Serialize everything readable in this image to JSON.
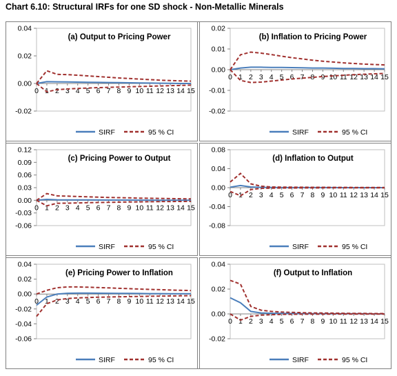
{
  "title": "Chart 6.10: Structural IRFs for one SD shock - Non-Metallic Minerals",
  "colors": {
    "sirf": "#4a7ebb",
    "ci": "#a0302e"
  },
  "chart_data": [
    {
      "type": "line",
      "title": "(a) Output to Pricing Power",
      "x": [
        0,
        1,
        2,
        3,
        4,
        5,
        6,
        7,
        8,
        9,
        10,
        11,
        12,
        13,
        14,
        15
      ],
      "xticks": [
        "0",
        "1",
        "2",
        "3",
        "4",
        "5",
        "6",
        "7",
        "8",
        "9",
        "10",
        "11",
        "12",
        "13",
        "14",
        "15"
      ],
      "ylim": [
        -0.02,
        0.04
      ],
      "yticks": [
        "0.04",
        "0.02",
        "0.00",
        "-0.02"
      ],
      "series": [
        {
          "name": "SIRF",
          "style": "solid",
          "values": [
            0.0,
            0.0013,
            0.0012,
            0.0011,
            0.001,
            0.0009,
            0.0008,
            0.0007,
            0.0006,
            0.0005,
            0.0004,
            0.0003,
            0.0002,
            0.0001,
            0.0,
            0.0
          ]
        },
        {
          "name": "95 % CI",
          "style": "dashed",
          "values": [
            0.0,
            0.0092,
            0.0066,
            0.0064,
            0.006,
            0.0055,
            0.005,
            0.0045,
            0.004,
            0.0036,
            0.0032,
            0.0028,
            0.0024,
            0.0021,
            0.0019,
            0.0017
          ]
        },
        {
          "name": "",
          "style": "dashed",
          "values": [
            0.0,
            -0.006,
            -0.0045,
            -0.004,
            -0.0036,
            -0.0033,
            -0.003,
            -0.0028,
            -0.0026,
            -0.0024,
            -0.0022,
            -0.002,
            -0.0018,
            -0.0016,
            -0.0014,
            -0.0012
          ]
        }
      ]
    },
    {
      "type": "line",
      "title": "(b) Inflation to Pricing Power",
      "x": [
        0,
        1,
        2,
        3,
        4,
        5,
        6,
        7,
        8,
        9,
        10,
        11,
        12,
        13,
        14,
        15
      ],
      "xticks": [
        "0",
        "1",
        "2",
        "3",
        "4",
        "5",
        "6",
        "7",
        "8",
        "9",
        "10",
        "11",
        "12",
        "13",
        "14",
        "15"
      ],
      "ylim": [
        -0.02,
        0.02
      ],
      "yticks": [
        "0.02",
        "0.01",
        "0.00",
        "-0.01",
        "-0.02"
      ],
      "series": [
        {
          "name": "SIRF",
          "style": "solid",
          "values": [
            0.0,
            0.0008,
            0.0012,
            0.0012,
            0.0011,
            0.0011,
            0.001,
            0.0009,
            0.0008,
            0.0008,
            0.0007,
            0.0006,
            0.0006,
            0.0005,
            0.0005,
            0.0004
          ]
        },
        {
          "name": "95 % CI",
          "style": "dashed",
          "values": [
            0.0,
            0.0072,
            0.0085,
            0.008,
            0.0073,
            0.0065,
            0.0058,
            0.0052,
            0.0046,
            0.0041,
            0.0037,
            0.0033,
            0.003,
            0.0027,
            0.0025,
            0.0023
          ]
        },
        {
          "name": "",
          "style": "dashed",
          "values": [
            0.0,
            -0.0052,
            -0.0062,
            -0.006,
            -0.0055,
            -0.005,
            -0.0045,
            -0.0041,
            -0.0037,
            -0.0033,
            -0.003,
            -0.0027,
            -0.0024,
            -0.0022,
            -0.002,
            -0.0018
          ]
        }
      ]
    },
    {
      "type": "line",
      "title": "(c) Pricing Power to Output",
      "x": [
        0,
        1,
        2,
        3,
        4,
        5,
        6,
        7,
        8,
        9,
        10,
        11,
        12,
        13,
        14,
        15
      ],
      "xticks": [
        "0",
        "1",
        "2",
        "3",
        "4",
        "5",
        "6",
        "7",
        "8",
        "9",
        "10",
        "11",
        "12",
        "13",
        "14",
        "15"
      ],
      "ylim": [
        -0.06,
        0.12
      ],
      "yticks": [
        "0.12",
        "0.09",
        "0.06",
        "0.03",
        "0.00",
        "-0.03",
        "-0.06"
      ],
      "series": [
        {
          "name": "SIRF",
          "style": "solid",
          "values": [
            0.0,
            0.0022,
            0.0012,
            0.001,
            0.0009,
            0.0008,
            0.0007,
            0.0006,
            0.0005,
            0.0005,
            0.0004,
            0.0004,
            0.0003,
            0.0003,
            0.0002,
            0.0002
          ]
        },
        {
          "name": "95 % CI",
          "style": "dashed",
          "values": [
            0.0,
            0.016,
            0.0105,
            0.0098,
            0.009,
            0.0082,
            0.0075,
            0.0068,
            0.0062,
            0.0057,
            0.0052,
            0.0048,
            0.0044,
            0.004,
            0.0037,
            0.0034
          ]
        },
        {
          "name": "",
          "style": "dashed",
          "values": [
            0.0,
            -0.013,
            -0.007,
            -0.0068,
            -0.0062,
            -0.0057,
            -0.0052,
            -0.0048,
            -0.0044,
            -0.004,
            -0.0037,
            -0.0034,
            -0.0031,
            -0.0029,
            -0.0027,
            -0.0025
          ]
        }
      ]
    },
    {
      "type": "line",
      "title": "(d) Inflation to Output",
      "x": [
        0,
        1,
        2,
        3,
        4,
        5,
        6,
        7,
        8,
        9,
        10,
        11,
        12,
        13,
        14,
        15
      ],
      "xticks": [
        "0",
        "1",
        "2",
        "3",
        "4",
        "5",
        "6",
        "7",
        "8",
        "9",
        "10",
        "11",
        "12",
        "13",
        "14",
        "15"
      ],
      "ylim": [
        -0.08,
        0.08
      ],
      "yticks": [
        "0.08",
        "0.04",
        "0.00",
        "-0.04",
        "-0.08"
      ],
      "series": [
        {
          "name": "SIRF",
          "style": "solid",
          "values": [
            0.001,
            0.0045,
            0.0015,
            0.0006,
            0.0003,
            0.0002,
            0.0002,
            0.0001,
            0.0001,
            0.0001,
            0.0001,
            0.0,
            0.0,
            0.0,
            0.0,
            0.0
          ]
        },
        {
          "name": "95 % CI",
          "style": "dashed",
          "values": [
            0.012,
            0.03,
            0.008,
            0.003,
            0.0015,
            0.0012,
            0.001,
            0.0009,
            0.0008,
            0.0007,
            0.0006,
            0.0006,
            0.0005,
            0.0005,
            0.0005,
            0.0004
          ]
        },
        {
          "name": "",
          "style": "dashed",
          "values": [
            -0.008,
            -0.017,
            -0.004,
            -0.0015,
            -0.001,
            -0.0008,
            -0.0007,
            -0.0006,
            -0.0006,
            -0.0005,
            -0.0005,
            -0.0005,
            -0.0004,
            -0.0004,
            -0.0004,
            -0.0004
          ]
        }
      ]
    },
    {
      "type": "line",
      "title": "(e) Pricing Power to Inflation",
      "x": [
        0,
        1,
        2,
        3,
        4,
        5,
        6,
        7,
        8,
        9,
        10,
        11,
        12,
        13,
        14,
        15
      ],
      "xticks": [
        "0",
        "1",
        "2",
        "3",
        "4",
        "5",
        "6",
        "7",
        "8",
        "9",
        "10",
        "11",
        "12",
        "13",
        "14",
        "15"
      ],
      "ylim": [
        -0.06,
        0.04
      ],
      "yticks": [
        "0.04",
        "0.02",
        "0.00",
        "-0.02",
        "-0.04",
        "-0.06"
      ],
      "series": [
        {
          "name": "SIRF",
          "style": "solid",
          "values": [
            -0.015,
            -0.004,
            0.0,
            0.001,
            0.0012,
            0.0012,
            0.0011,
            0.001,
            0.0009,
            0.0008,
            0.0007,
            0.0006,
            0.0006,
            0.0005,
            0.0005,
            0.0004
          ]
        },
        {
          "name": "95 % CI",
          "style": "dashed",
          "values": [
            0.0,
            0.005,
            0.0085,
            0.0095,
            0.0095,
            0.0092,
            0.0087,
            0.0082,
            0.0077,
            0.0072,
            0.0067,
            0.0062,
            0.0058,
            0.0054,
            0.005,
            0.0047
          ]
        },
        {
          "name": "",
          "style": "dashed",
          "values": [
            -0.03,
            -0.013,
            -0.008,
            -0.006,
            -0.0052,
            -0.0047,
            -0.0043,
            -0.004,
            -0.0037,
            -0.0034,
            -0.0032,
            -0.003,
            -0.0028,
            -0.0026,
            -0.0024,
            -0.0022
          ]
        }
      ]
    },
    {
      "type": "line",
      "title": "(f) Output to Inflation",
      "x": [
        0,
        1,
        2,
        3,
        4,
        5,
        6,
        7,
        8,
        9,
        10,
        11,
        12,
        13,
        14,
        15
      ],
      "xticks": [
        "0",
        "1",
        "2",
        "3",
        "4",
        "5",
        "6",
        "7",
        "8",
        "9",
        "10",
        "11",
        "12",
        "13",
        "14",
        "15"
      ],
      "ylim": [
        -0.02,
        0.04
      ],
      "yticks": [
        "0.04",
        "0.02",
        "0.00",
        "-0.02"
      ],
      "series": [
        {
          "name": "SIRF",
          "style": "solid",
          "values": [
            0.013,
            0.009,
            0.002,
            0.0008,
            0.0005,
            0.0004,
            0.0003,
            0.0002,
            0.0002,
            0.0001,
            0.0001,
            0.0001,
            0.0001,
            0.0001,
            0.0,
            0.0
          ]
        },
        {
          "name": "95 % CI",
          "style": "dashed",
          "values": [
            0.027,
            0.024,
            0.006,
            0.003,
            0.002,
            0.0015,
            0.0012,
            0.001,
            0.0008,
            0.0007,
            0.0006,
            0.0005,
            0.0004,
            0.0004,
            0.0003,
            0.0003
          ]
        },
        {
          "name": "",
          "style": "dashed",
          "values": [
            0.0,
            -0.005,
            -0.002,
            -0.001,
            -0.0006,
            -0.0004,
            -0.0003,
            -0.0002,
            -0.0002,
            -0.0002,
            -0.0001,
            -0.0001,
            -0.0001,
            -0.0001,
            -0.0001,
            -0.0001
          ]
        }
      ]
    }
  ]
}
